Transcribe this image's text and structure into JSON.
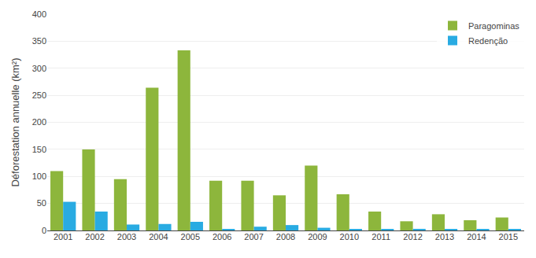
{
  "chart_data": {
    "type": "bar",
    "categories": [
      "2001",
      "2002",
      "2003",
      "2004",
      "2005",
      "2006",
      "2007",
      "2008",
      "2009",
      "2010",
      "2011",
      "2012",
      "2013",
      "2014",
      "2015"
    ],
    "series": [
      {
        "name": "Paragominas",
        "color": "#8db63c",
        "values": [
          110,
          150,
          95,
          264,
          333,
          92,
          92,
          65,
          120,
          67,
          35,
          17,
          30,
          19,
          24
        ]
      },
      {
        "name": "Redenção",
        "color": "#29abe2",
        "values": [
          53,
          35,
          11,
          12,
          16,
          2,
          7,
          10,
          5,
          2,
          2,
          3,
          2,
          2,
          2
        ]
      }
    ],
    "ylabel": "Déforestation annuelle (km²)",
    "ylim": [
      0,
      400
    ],
    "yticks": [
      0,
      50,
      100,
      150,
      200,
      250,
      300,
      350,
      400
    ],
    "grid": true,
    "legend": "upper right"
  }
}
